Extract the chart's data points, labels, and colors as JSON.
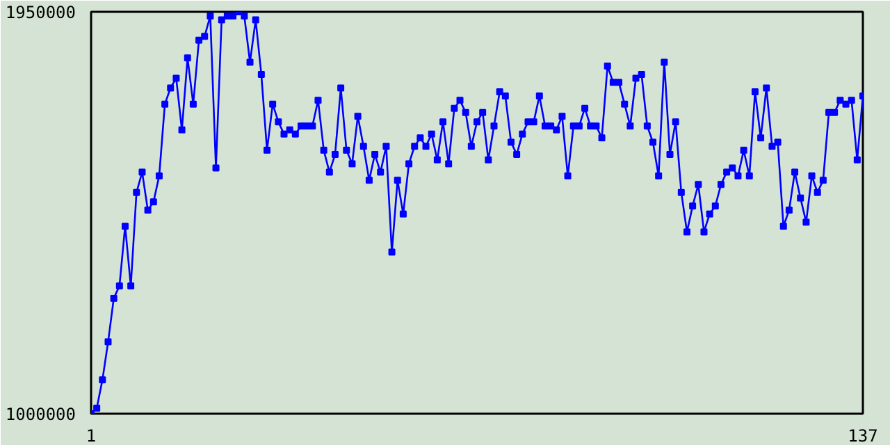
{
  "chart_data": {
    "type": "line",
    "marker": "square",
    "line_style": "solid",
    "xlim": [
      1,
      137
    ],
    "xticks": [
      1,
      137
    ],
    "ylim": [
      1000000,
      1950000
    ],
    "yticks": [
      1000000,
      1950000
    ],
    "x": [
      1,
      2,
      3,
      4,
      5,
      6,
      7,
      8,
      9,
      10,
      11,
      12,
      13,
      14,
      15,
      16,
      17,
      18,
      19,
      20,
      21,
      22,
      23,
      24,
      25,
      26,
      27,
      28,
      29,
      30,
      31,
      32,
      33,
      34,
      35,
      36,
      37,
      38,
      39,
      40,
      41,
      42,
      43,
      44,
      45,
      46,
      47,
      48,
      49,
      50,
      51,
      52,
      53,
      54,
      55,
      56,
      57,
      58,
      59,
      60,
      61,
      62,
      63,
      64,
      65,
      66,
      67,
      68,
      69,
      70,
      71,
      72,
      73,
      74,
      75,
      76,
      77,
      78,
      79,
      80,
      81,
      82,
      83,
      84,
      85,
      86,
      87,
      88,
      89,
      90,
      91,
      92,
      93,
      94,
      95,
      96,
      97,
      98,
      99,
      100,
      101,
      102,
      103,
      104,
      105,
      106,
      107,
      108,
      109,
      110,
      111,
      112,
      113,
      114,
      115,
      116,
      117,
      118,
      119,
      120,
      121,
      122,
      123,
      124,
      125,
      126,
      127,
      128,
      129,
      130,
      131,
      132,
      133,
      134,
      135,
      136,
      137
    ],
    "series": [
      {
        "color": "#0000ff",
        "values": [
          1000000,
          1013000,
          1080000,
          1170000,
          1273000,
          1302000,
          1443000,
          1302000,
          1523000,
          1571000,
          1481000,
          1501000,
          1562000,
          1732000,
          1770000,
          1793000,
          1671000,
          1841000,
          1732000,
          1883000,
          1892000,
          1940000,
          1581000,
          1931000,
          1940000,
          1940000,
          1950000,
          1940000,
          1831000,
          1931000,
          1802000,
          1623000,
          1732000,
          1690000,
          1661000,
          1671000,
          1661000,
          1680000,
          1680000,
          1680000,
          1741000,
          1623000,
          1571000,
          1613000,
          1770000,
          1623000,
          1591000,
          1703000,
          1632000,
          1552000,
          1613000,
          1571000,
          1632000,
          1382000,
          1552000,
          1472000,
          1591000,
          1632000,
          1652000,
          1632000,
          1661000,
          1600000,
          1690000,
          1591000,
          1722000,
          1741000,
          1712000,
          1632000,
          1690000,
          1712000,
          1600000,
          1680000,
          1761000,
          1751000,
          1642000,
          1613000,
          1661000,
          1690000,
          1690000,
          1751000,
          1680000,
          1680000,
          1671000,
          1703000,
          1562000,
          1680000,
          1680000,
          1722000,
          1680000,
          1680000,
          1652000,
          1822000,
          1783000,
          1783000,
          1732000,
          1680000,
          1793000,
          1802000,
          1680000,
          1642000,
          1562000,
          1831000,
          1613000,
          1690000,
          1523000,
          1430000,
          1491000,
          1542000,
          1430000,
          1472000,
          1491000,
          1542000,
          1571000,
          1581000,
          1562000,
          1623000,
          1562000,
          1761000,
          1652000,
          1770000,
          1632000,
          1642000,
          1443000,
          1481000,
          1571000,
          1510000,
          1453000,
          1562000,
          1523000,
          1552000,
          1712000,
          1712000,
          1741000,
          1732000,
          1741000,
          1600000,
          1751000
        ]
      }
    ]
  }
}
